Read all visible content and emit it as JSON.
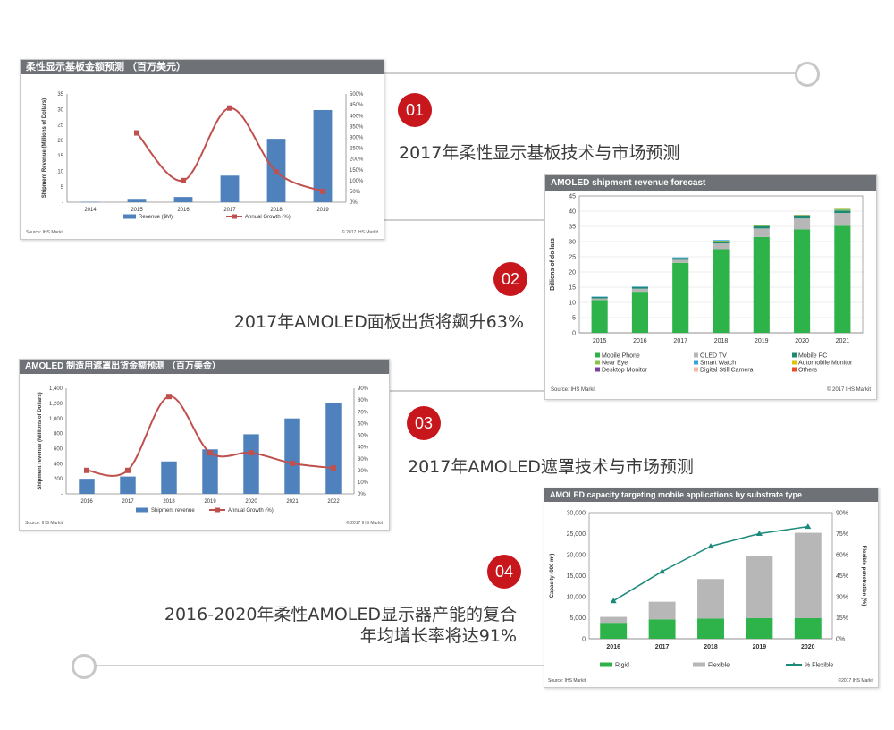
{
  "sections": [
    {
      "badge": "01",
      "heading": "2017年柔性显示基板技术与市场预测"
    },
    {
      "badge": "02",
      "heading": "2017年AMOLED面板出货将飙升63%"
    },
    {
      "badge": "03",
      "heading": "2017年AMOLED遮罩技术与市场预测"
    },
    {
      "badge": "04",
      "heading_line1": "2016-2020年柔性AMOLED显示器产能的复合",
      "heading_line2": "年均增长率将达91%"
    }
  ],
  "chart_data": [
    {
      "type": "bar",
      "title": "柔性显示基板金额预测 （百万美元）",
      "categories": [
        "2014",
        "2015",
        "2016",
        "2017",
        "2018",
        "2019"
      ],
      "series": [
        {
          "name": "Revenue ($M)",
          "type": "bar",
          "axis": "left",
          "values": [
            0.1,
            0.8,
            1.7,
            8.6,
            20.5,
            29.8
          ]
        },
        {
          "name": "Annual Growth (%)",
          "type": "line",
          "axis": "right",
          "values": [
            null,
            320,
            100,
            435,
            140,
            50
          ]
        }
      ],
      "ylabel": "Shipment Revenue (Millions of Dollars)",
      "ylim": [
        0,
        35
      ],
      "yticks": [
        "-",
        "5",
        "10",
        "15",
        "20",
        "25",
        "30",
        "35"
      ],
      "y2lim": [
        0,
        500
      ],
      "y2ticks": [
        "0%",
        "50%",
        "100%",
        "150%",
        "200%",
        "250%",
        "300%",
        "350%",
        "400%",
        "450%",
        "500%"
      ],
      "legend": "bottom",
      "source": "Source: IHS Markit",
      "copyright": "© 2017 IHS Markit",
      "colors": {
        "bar": "#4f81bd",
        "line": "#c0504d"
      }
    },
    {
      "type": "bar",
      "stacked": true,
      "title": "AMOLED shipment revenue forecast",
      "categories": [
        "2015",
        "2016",
        "2017",
        "2018",
        "2019",
        "2020",
        "2021"
      ],
      "series": [
        {
          "name": "Mobile Phone",
          "color": "#2db34a",
          "values": [
            10.8,
            13.5,
            23.0,
            27.5,
            31.5,
            34.0,
            35.2
          ]
        },
        {
          "name": "OLED TV",
          "color": "#b7b7b7",
          "values": [
            0.5,
            1.0,
            1.0,
            1.9,
            2.8,
            3.6,
            4.2
          ]
        },
        {
          "name": "Mobile PC",
          "color": "#1f8a72",
          "values": [
            0.5,
            0.5,
            0.6,
            0.7,
            0.8,
            0.7,
            0.8
          ]
        },
        {
          "name": "Near Eye",
          "color": "#8bc34a",
          "values": [
            0,
            0,
            0,
            0.2,
            0.2,
            0.2,
            0.3
          ]
        },
        {
          "name": "Smart Watch",
          "color": "#33a3d9",
          "values": [
            0.1,
            0.2,
            0.2,
            0.2,
            0.2,
            0.2,
            0.2
          ]
        },
        {
          "name": "Automobile Monitor",
          "color": "#e1c300",
          "values": [
            0,
            0,
            0,
            0,
            0,
            0.1,
            0.1
          ]
        },
        {
          "name": "Desktop Monitor",
          "color": "#7c3fa0",
          "values": [
            0,
            0,
            0,
            0,
            0,
            0,
            0
          ]
        },
        {
          "name": "Digital Still Camera",
          "color": "#f2b8a0",
          "values": [
            0,
            0,
            0,
            0,
            0,
            0,
            0
          ]
        },
        {
          "name": "Others",
          "color": "#e8502a",
          "values": [
            0,
            0,
            0,
            0,
            0,
            0,
            0
          ]
        }
      ],
      "ylabel": "Billions of dollars",
      "ylim": [
        0,
        45
      ],
      "yticks": [
        "0",
        "5",
        "10",
        "15",
        "20",
        "25",
        "30",
        "35",
        "40",
        "45"
      ],
      "legend": "bottom",
      "source": "Source: IHS Markit",
      "copyright": "© 2017 IHS Markit"
    },
    {
      "type": "bar",
      "title": "AMOLED 制造用遮罩出货金额预测 （百万美金）",
      "categories": [
        "2016",
        "2017",
        "2018",
        "2019",
        "2020",
        "2021",
        "2022"
      ],
      "series": [
        {
          "name": "Shipment revenue",
          "type": "bar",
          "axis": "left",
          "values": [
            200,
            230,
            430,
            590,
            790,
            1000,
            1200
          ]
        },
        {
          "name": "Annual Growth (%)",
          "type": "line",
          "axis": "right",
          "values": [
            20,
            20,
            83,
            35,
            35,
            26,
            22
          ]
        }
      ],
      "ylabel": "Shipment revenue (Millions of Dollars)",
      "ylim": [
        0,
        1400
      ],
      "yticks": [
        "-",
        "200",
        "400",
        "600",
        "800",
        "1,000",
        "1,200",
        "1,400"
      ],
      "y2lim": [
        0,
        90
      ],
      "y2ticks": [
        "0%",
        "10%",
        "20%",
        "30%",
        "40%",
        "50%",
        "60%",
        "70%",
        "80%",
        "90%"
      ],
      "legend": "bottom",
      "source": "Source: IHS Markit",
      "copyright": "© 2017 IHS Markit",
      "colors": {
        "bar": "#4f81bd",
        "line": "#c0504d"
      }
    },
    {
      "type": "bar",
      "stacked": true,
      "title": "AMOLED capacity targeting mobile applications by substrate type",
      "categories": [
        "2016",
        "2017",
        "2018",
        "2019",
        "2020"
      ],
      "series": [
        {
          "name": "Rigid",
          "type": "bar",
          "axis": "left",
          "color": "#2db34a",
          "values": [
            3800,
            4600,
            4800,
            4900,
            4900
          ]
        },
        {
          "name": "Flexible",
          "type": "bar",
          "axis": "left",
          "color": "#b7b7b7",
          "values": [
            1400,
            4200,
            9400,
            14700,
            20300
          ]
        },
        {
          "name": "% Flexible",
          "type": "line",
          "axis": "right",
          "color": "#1a8a7a",
          "values": [
            27,
            48,
            66,
            75,
            80
          ]
        }
      ],
      "ylabel": "Capacity (000 m²)",
      "y2label": "Flexible penetration (%)",
      "ylim": [
        0,
        30000
      ],
      "yticks": [
        "0",
        "5,000",
        "10,000",
        "15,000",
        "20,000",
        "25,000",
        "30,000"
      ],
      "y2lim": [
        0,
        90
      ],
      "y2ticks": [
        "0%",
        "15%",
        "30%",
        "45%",
        "60%",
        "75%",
        "90%"
      ],
      "legend": "bottom",
      "source": "Source: IHS Markit",
      "copyright": "©2017 IHS Markit"
    }
  ]
}
